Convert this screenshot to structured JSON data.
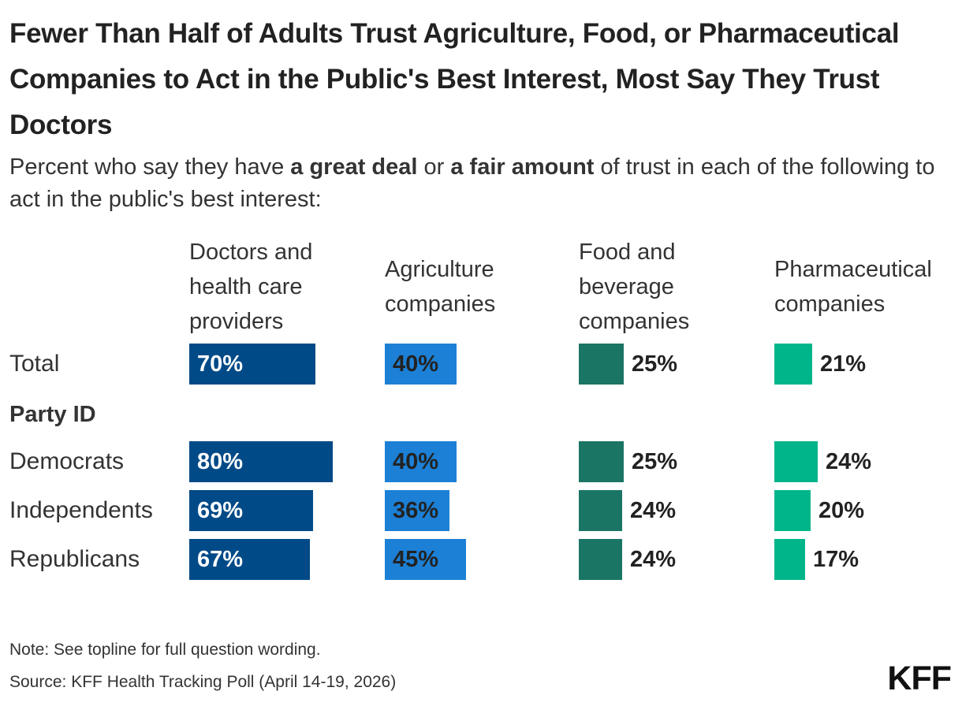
{
  "title": "Fewer Than Half of Adults Trust Agriculture, Food, or Pharmaceutical Companies to Act in the Public's Best Interest, Most Say They Trust Doctors",
  "subtitle": {
    "part1": "Percent who say they have ",
    "bold1": "a great deal",
    "part2": " or ",
    "bold2": "a fair amount",
    "part3": " of trust in each of the following to act in the public's best interest:"
  },
  "note": "Note: See topline for full question wording.",
  "source": "Source: KFF Health Tracking Poll (April 14-19, 2026)",
  "logo": "KFF",
  "colors": {
    "doctors": "#004a87",
    "agriculture": "#1c80d6",
    "food": "#1a7564",
    "pharma": "#00b58a"
  },
  "chart_data": {
    "type": "bar",
    "title": "Fewer Than Half of Adults Trust Agriculture, Food, or Pharmaceutical Companies to Act in the Public's Best Interest, Most Say They Trust Doctors",
    "columns": [
      "Doctors and health care providers",
      "Agriculture companies",
      "Food and beverage companies",
      "Pharmaceutical companies"
    ],
    "group_label": "Party ID",
    "rows": [
      {
        "label": "Total",
        "values": [
          70,
          40,
          25,
          21
        ],
        "value_labels": [
          "70%",
          "40%",
          "25%",
          "21%"
        ]
      },
      {
        "label": "Democrats",
        "values": [
          80,
          40,
          25,
          24
        ],
        "value_labels": [
          "80%",
          "40%",
          "25%",
          "24%"
        ]
      },
      {
        "label": "Independents",
        "values": [
          69,
          36,
          24,
          20
        ],
        "value_labels": [
          "69%",
          "36%",
          "24%",
          "20%"
        ]
      },
      {
        "label": "Republicans",
        "values": [
          67,
          45,
          24,
          17
        ],
        "value_labels": [
          "67%",
          "45%",
          "24%",
          "17%"
        ]
      }
    ],
    "unit": "%",
    "xlim": [
      0,
      100
    ]
  }
}
